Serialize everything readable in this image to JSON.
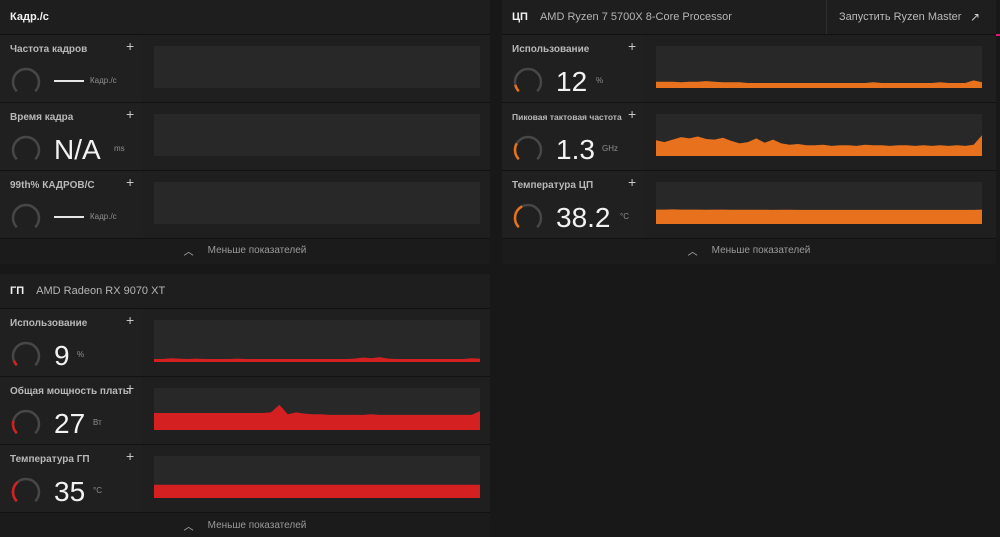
{
  "fps_panel": {
    "title": "Кадр./с",
    "metrics": [
      {
        "label": "Частота кадров",
        "value": "",
        "unit": "Кадр./с"
      },
      {
        "label": "Время кадра",
        "value": "N/A",
        "unit": "ms"
      },
      {
        "label": "99th% КАДРОВ/С",
        "value": "",
        "unit": "Кадр./с"
      }
    ],
    "footer": "Меньше показателей"
  },
  "cpu_panel": {
    "title": "ЦП",
    "subtitle": "AMD Ryzen 7 5700X 8-Core Processor",
    "action": "Запустить Ryzen Master",
    "metrics": [
      {
        "label": "Использование",
        "value": "12",
        "unit": "%",
        "level": 0.12
      },
      {
        "label": "Пиковая тактовая частота",
        "value": "1.3",
        "unit": "GHz",
        "level": 0.28
      },
      {
        "label": "Температура ЦП",
        "value": "38.2",
        "unit": "°C",
        "level": 0.4
      }
    ],
    "footer": "Меньше показателей"
  },
  "gpu_panel": {
    "title": "ГП",
    "subtitle": "AMD Radeon RX 9070 XT",
    "metrics": [
      {
        "label": "Использование",
        "value": "9",
        "unit": "%",
        "level": 0.09
      },
      {
        "label": "Общая мощность платы",
        "value": "27",
        "unit": "Вт",
        "level": 0.22
      },
      {
        "label": "Температура ГП",
        "value": "35",
        "unit": "°C",
        "level": 0.35
      }
    ],
    "footer": "Меньше показателей"
  },
  "colors": {
    "cpu_accent": "#e8711d",
    "gpu_accent": "#d42020",
    "gauge_track": "#474747"
  },
  "chart_data": [
    {
      "type": "area",
      "series": [
        {
          "values": [
            10,
            10,
            10,
            9,
            10,
            10,
            11,
            10,
            9,
            9,
            9,
            8,
            8,
            8,
            8,
            8,
            8,
            8,
            8,
            8,
            8,
            8,
            8,
            8,
            8,
            8,
            9,
            8,
            8,
            8,
            8,
            8,
            8,
            8,
            9,
            8,
            8,
            8,
            12,
            9
          ]
        }
      ]
    },
    {
      "type": "area",
      "series": [
        {
          "values": [
            25,
            22,
            26,
            30,
            28,
            31,
            27,
            26,
            29,
            24,
            20,
            22,
            28,
            21,
            26,
            20,
            18,
            19,
            17,
            17,
            18,
            16,
            17,
            17,
            16,
            18,
            17,
            17,
            16,
            17,
            17,
            16,
            17,
            16,
            17,
            16,
            17,
            16,
            18,
            33
          ]
        }
      ]
    },
    {
      "type": "area",
      "series": [
        {
          "values": [
            38,
            38,
            38.5,
            38,
            38.2,
            38,
            37.8,
            38,
            38,
            37.8,
            37.6,
            37.5,
            37.6,
            37.5,
            37.4,
            37.5,
            37.5,
            37.4,
            37.4,
            37.4,
            37.4,
            37.4,
            37.4,
            37.4,
            37.4,
            37.4,
            37.4,
            37.4,
            37.4,
            37.4,
            37.4,
            37.4,
            37.4,
            37.4,
            37.4,
            37.4,
            37.4,
            37.4,
            37.4,
            38
          ]
        }
      ]
    },
    {
      "type": "area",
      "series": [
        {
          "values": [
            8,
            8,
            10,
            9,
            8,
            9,
            8,
            8,
            8,
            8,
            9,
            8,
            8,
            8,
            8,
            8,
            8,
            8,
            8,
            8,
            8,
            8,
            8,
            8,
            9,
            12,
            10,
            13,
            9,
            8,
            8,
            8,
            8,
            8,
            8,
            8,
            8,
            8,
            10,
            9
          ]
        }
      ]
    },
    {
      "type": "area",
      "series": [
        {
          "values": [
            27,
            27,
            27,
            27,
            27,
            27,
            27,
            27,
            27,
            27,
            27,
            27,
            27,
            27,
            28,
            40,
            25,
            28,
            26,
            25,
            25,
            24,
            24,
            24,
            24,
            24,
            25,
            24,
            24,
            24,
            24,
            24,
            24,
            24,
            24,
            24,
            24,
            24,
            24,
            30
          ]
        }
      ]
    },
    {
      "type": "area",
      "series": [
        {
          "values": [
            35,
            35,
            35,
            35,
            35,
            35,
            35,
            35,
            35,
            35,
            35,
            35,
            35,
            35,
            35,
            35,
            35,
            35,
            35,
            35,
            35,
            35,
            35,
            35,
            35,
            35,
            35,
            35,
            35,
            35,
            35,
            35,
            35,
            35,
            35,
            35,
            35,
            35,
            35,
            35
          ]
        }
      ]
    }
  ]
}
